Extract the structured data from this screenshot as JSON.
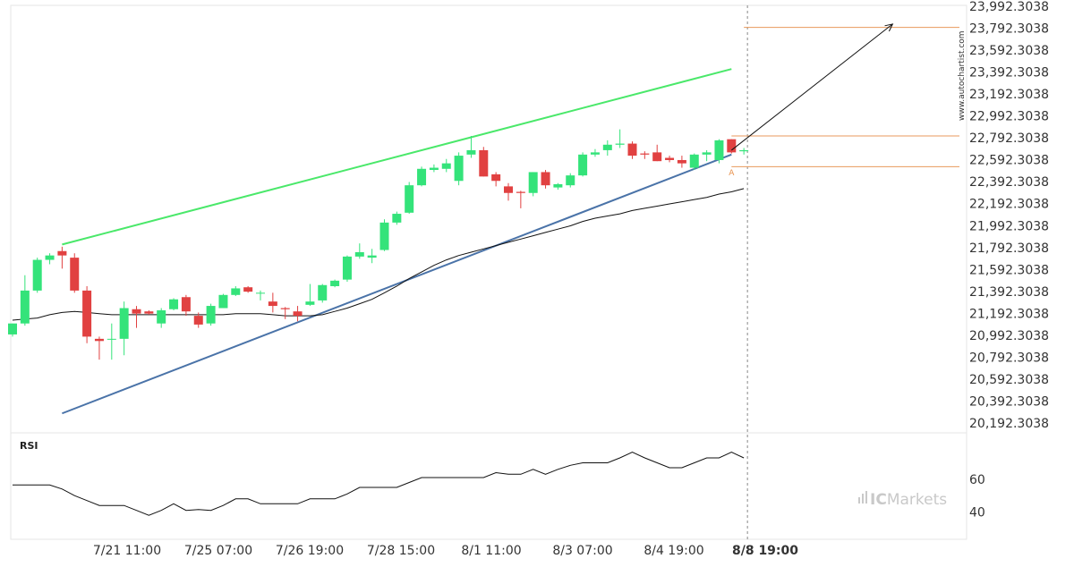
{
  "chart_data": {
    "type": "candlestick",
    "price_axis": {
      "min": 20192.3038,
      "max": 23992.3038,
      "ticks": [
        "23,992.3038",
        "23,792.3038",
        "23,592.3038",
        "23,392.3038",
        "23,192.3038",
        "22,992.3038",
        "22,792.3038",
        "22,592.3038",
        "22,392.3038",
        "22,192.3038",
        "21,992.3038",
        "21,792.3038",
        "21,592.3038",
        "21,392.3038",
        "21,192.3038",
        "20,992.3038",
        "20,792.3038",
        "20,592.3038",
        "20,392.3038",
        "20,192.3038"
      ]
    },
    "x_labels": [
      "7/21 11:00",
      "7/25 07:00",
      "7/26 19:00",
      "7/28 15:00",
      "8/1 11:00",
      "8/3 07:00",
      "8/4 19:00",
      "8/8 19:00"
    ],
    "highlight_x_label": "8/8 19:00",
    "candles": [
      {
        "o": 21000,
        "h": 21100,
        "l": 20980,
        "c": 21100
      },
      {
        "o": 21100,
        "h": 21540,
        "l": 21080,
        "c": 21400
      },
      {
        "o": 21400,
        "h": 21700,
        "l": 21380,
        "c": 21680
      },
      {
        "o": 21680,
        "h": 21740,
        "l": 21640,
        "c": 21720
      },
      {
        "o": 21760,
        "h": 21800,
        "l": 21600,
        "c": 21720
      },
      {
        "o": 21700,
        "h": 21740,
        "l": 21380,
        "c": 21400
      },
      {
        "o": 21400,
        "h": 21440,
        "l": 20920,
        "c": 20980
      },
      {
        "o": 20960,
        "h": 20980,
        "l": 20770,
        "c": 20940
      },
      {
        "o": 20960,
        "h": 21100,
        "l": 20770,
        "c": 20960
      },
      {
        "o": 20960,
        "h": 21300,
        "l": 20810,
        "c": 21240
      },
      {
        "o": 21230,
        "h": 21260,
        "l": 21060,
        "c": 21190
      },
      {
        "o": 21210,
        "h": 21220,
        "l": 21180,
        "c": 21190
      },
      {
        "o": 21100,
        "h": 21240,
        "l": 21060,
        "c": 21220
      },
      {
        "o": 21230,
        "h": 21330,
        "l": 21220,
        "c": 21320
      },
      {
        "o": 21340,
        "h": 21360,
        "l": 21170,
        "c": 21210
      },
      {
        "o": 21170,
        "h": 21200,
        "l": 21060,
        "c": 21090
      },
      {
        "o": 21100,
        "h": 21280,
        "l": 21080,
        "c": 21260
      },
      {
        "o": 21240,
        "h": 21370,
        "l": 21240,
        "c": 21360
      },
      {
        "o": 21360,
        "h": 21440,
        "l": 21350,
        "c": 21420
      },
      {
        "o": 21430,
        "h": 21440,
        "l": 21380,
        "c": 21390
      },
      {
        "o": 21380,
        "h": 21400,
        "l": 21310,
        "c": 21380
      },
      {
        "o": 21300,
        "h": 21380,
        "l": 21200,
        "c": 21260
      },
      {
        "o": 21240,
        "h": 21250,
        "l": 21140,
        "c": 21230
      },
      {
        "o": 21210,
        "h": 21260,
        "l": 21120,
        "c": 21170
      },
      {
        "o": 21270,
        "h": 21460,
        "l": 21260,
        "c": 21300
      },
      {
        "o": 21310,
        "h": 21460,
        "l": 21290,
        "c": 21450
      },
      {
        "o": 21440,
        "h": 21500,
        "l": 21430,
        "c": 21490
      },
      {
        "o": 21500,
        "h": 21720,
        "l": 21480,
        "c": 21710
      },
      {
        "o": 21710,
        "h": 21830,
        "l": 21690,
        "c": 21750
      },
      {
        "o": 21700,
        "h": 21780,
        "l": 21650,
        "c": 21720
      },
      {
        "o": 21770,
        "h": 22050,
        "l": 21760,
        "c": 22020
      },
      {
        "o": 22020,
        "h": 22120,
        "l": 22000,
        "c": 22100
      },
      {
        "o": 22110,
        "h": 22390,
        "l": 22100,
        "c": 22360
      },
      {
        "o": 22360,
        "h": 22530,
        "l": 22350,
        "c": 22510
      },
      {
        "o": 22500,
        "h": 22550,
        "l": 22480,
        "c": 22520
      },
      {
        "o": 22510,
        "h": 22600,
        "l": 22480,
        "c": 22560
      },
      {
        "o": 22400,
        "h": 22660,
        "l": 22360,
        "c": 22630
      },
      {
        "o": 22640,
        "h": 22810,
        "l": 22610,
        "c": 22680
      },
      {
        "o": 22680,
        "h": 22710,
        "l": 22440,
        "c": 22440
      },
      {
        "o": 22460,
        "h": 22480,
        "l": 22350,
        "c": 22400
      },
      {
        "o": 22350,
        "h": 22380,
        "l": 22220,
        "c": 22290
      },
      {
        "o": 22300,
        "h": 22310,
        "l": 22150,
        "c": 22290
      },
      {
        "o": 22290,
        "h": 22480,
        "l": 22260,
        "c": 22480
      },
      {
        "o": 22480,
        "h": 22500,
        "l": 22330,
        "c": 22360
      },
      {
        "o": 22340,
        "h": 22380,
        "l": 22320,
        "c": 22370
      },
      {
        "o": 22360,
        "h": 22470,
        "l": 22340,
        "c": 22450
      },
      {
        "o": 22450,
        "h": 22660,
        "l": 22440,
        "c": 22640
      },
      {
        "o": 22640,
        "h": 22690,
        "l": 22620,
        "c": 22660
      },
      {
        "o": 22680,
        "h": 22770,
        "l": 22630,
        "c": 22730
      },
      {
        "o": 22730,
        "h": 22870,
        "l": 22700,
        "c": 22740
      },
      {
        "o": 22740,
        "h": 22760,
        "l": 22600,
        "c": 22630
      },
      {
        "o": 22650,
        "h": 22670,
        "l": 22600,
        "c": 22640
      },
      {
        "o": 22660,
        "h": 22730,
        "l": 22580,
        "c": 22580
      },
      {
        "o": 22610,
        "h": 22630,
        "l": 22570,
        "c": 22590
      },
      {
        "o": 22590,
        "h": 22630,
        "l": 22520,
        "c": 22560
      },
      {
        "o": 22520,
        "h": 22650,
        "l": 22500,
        "c": 22640
      },
      {
        "o": 22640,
        "h": 22680,
        "l": 22580,
        "c": 22660
      },
      {
        "o": 22590,
        "h": 22780,
        "l": 22560,
        "c": 22770
      },
      {
        "o": 22780,
        "h": 22780,
        "l": 22650,
        "c": 22660
      },
      {
        "o": 22670,
        "h": 22700,
        "l": 22640,
        "c": 22680
      }
    ],
    "moving_average": [
      21130,
      21140,
      21150,
      21180,
      21200,
      21210,
      21200,
      21190,
      21180,
      21180,
      21180,
      21180,
      21180,
      21180,
      21180,
      21180,
      21180,
      21180,
      21190,
      21190,
      21190,
      21180,
      21170,
      21170,
      21170,
      21180,
      21210,
      21240,
      21280,
      21320,
      21380,
      21440,
      21510,
      21570,
      21630,
      21680,
      21720,
      21750,
      21780,
      21810,
      21840,
      21870,
      21900,
      21930,
      21960,
      21990,
      22030,
      22060,
      22080,
      22100,
      22130,
      22150,
      22170,
      22190,
      22210,
      22230,
      22250,
      22280,
      22300,
      22330
    ],
    "upper_trendline": {
      "from": {
        "index": 4,
        "price": 21820
      },
      "to": {
        "index": 58,
        "price": 23420
      }
    },
    "lower_trendline": {
      "from": {
        "index": 4,
        "price": 20280
      },
      "to": {
        "index": 58,
        "price": 22640
      }
    },
    "projection_arrow": {
      "from": {
        "index": 58,
        "price": 22680
      },
      "to": {
        "index": 71,
        "price": 23830
      }
    },
    "levels": [
      {
        "price": 23800,
        "from_index": 59
      },
      {
        "price": 22810,
        "from_index": 58
      },
      {
        "price": 22530,
        "from_index": 58
      }
    ],
    "marker": {
      "text": "A",
      "index": 58,
      "price": 22550
    },
    "rsi": {
      "label": "RSI",
      "ticks": [
        60,
        40
      ],
      "ylim": [
        25,
        85
      ],
      "values": [
        56.5,
        56.5,
        56.5,
        56.5,
        54,
        50,
        47,
        44,
        44,
        44,
        41,
        38,
        41,
        45,
        41,
        41.5,
        41,
        44,
        48,
        48,
        45,
        45,
        45,
        45,
        48,
        48,
        48,
        51,
        55,
        55,
        55,
        55,
        58,
        61,
        61,
        61,
        61,
        61,
        61,
        64,
        63,
        63,
        66,
        63,
        66,
        68.5,
        70,
        70,
        70,
        73,
        76.5,
        73,
        70,
        67,
        67,
        70,
        73,
        73,
        76.5,
        73
      ]
    },
    "watermark": "www.autochartist.com",
    "logo": {
      "prefix": "IC",
      "suffix": "Markets"
    },
    "colors": {
      "up": "#34e37a",
      "down": "#e14141",
      "upper_trend": "#4ae86a",
      "lower_trend": "#4a73a8",
      "levels": "#e89a5c",
      "marker": "#e8924e",
      "line": "#111111",
      "logo": "#c9c9c9"
    }
  }
}
